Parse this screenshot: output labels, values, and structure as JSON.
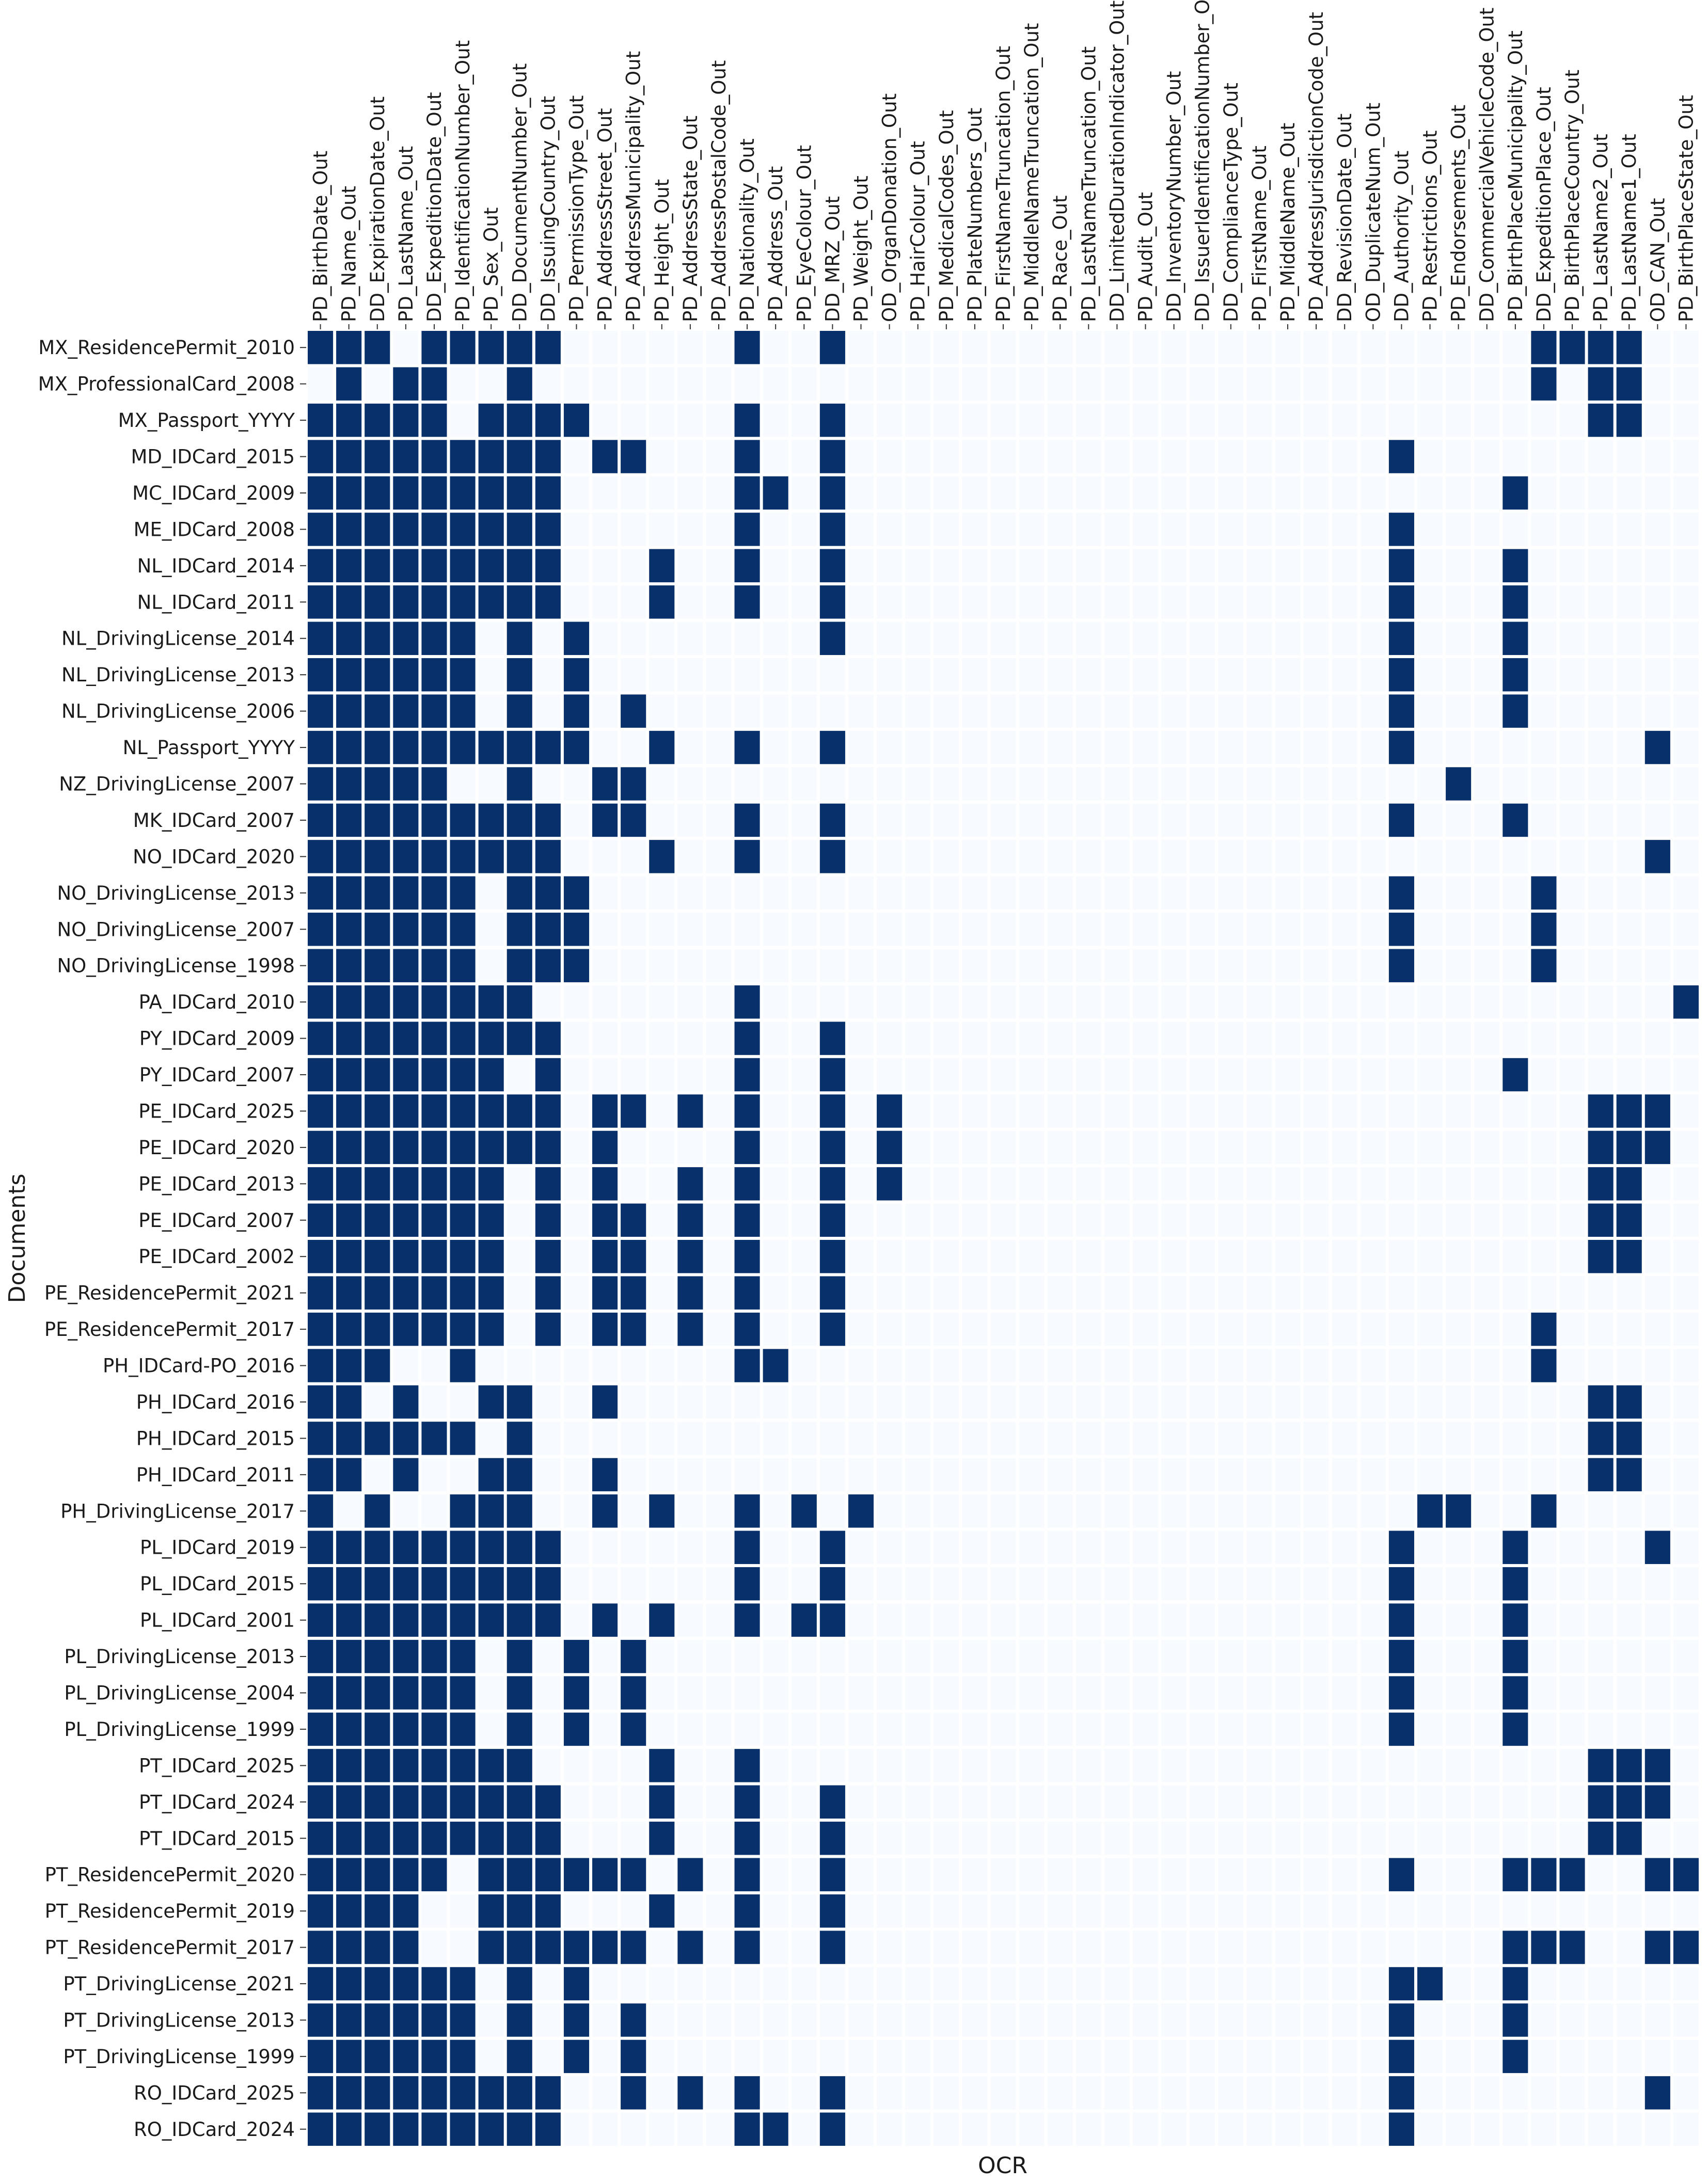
{
  "chart_data": {
    "type": "heatmap",
    "xlabel": "OCR",
    "ylabel": "Documents",
    "colors": {
      "present": "#08306b",
      "absent": "#f7fbff",
      "separator": "#ffffff"
    },
    "columns": [
      "PD_BirthDate_Out",
      "PD_Name_Out",
      "DD_ExpirationDate_Out",
      "PD_LastName_Out",
      "DD_ExpeditionDate_Out",
      "PD_IdentificationNumber_Out",
      "PD_Sex_Out",
      "DD_DocumentNumber_Out",
      "DD_IssuingCountry_Out",
      "PD_PermissionType_Out",
      "PD_AddressStreet_Out",
      "PD_AddressMunicipality_Out",
      "PD_Height_Out",
      "PD_AddressState_Out",
      "PD_AddressPostalCode_Out",
      "PD_Nationality_Out",
      "PD_Address_Out",
      "PD_EyeColour_Out",
      "DD_MRZ_Out",
      "PD_Weight_Out",
      "OD_OrganDonation_Out",
      "PD_HairColour_Out",
      "PD_MedicalCodes_Out",
      "PD_PlateNumbers_Out",
      "PD_FirstNameTruncation_Out",
      "PD_MiddleNameTruncation_Out",
      "PD_Race_Out",
      "PD_LastNameTruncation_Out",
      "DD_LimitedDurationIndicator_Out",
      "PD_Audit_Out",
      "DD_InventoryNumber_Out",
      "DD_IssuerIdentificationNumber_Out",
      "DD_ComplianceType_Out",
      "PD_FirstName_Out",
      "PD_MiddleName_Out",
      "PD_AddressJurisdictionCode_Out",
      "DD_RevisionDate_Out",
      "OD_DuplicateNum_Out",
      "DD_Authority_Out",
      "PD_Restrictions_Out",
      "PD_Endorsements_Out",
      "DD_CommercialVehicleCode_Out",
      "PD_BirthPlaceMunicipality_Out",
      "DD_ExpeditionPlace_Out",
      "PD_BirthPlaceCountry_Out",
      "PD_LastName2_Out",
      "PD_LastName1_Out",
      "OD_CAN_Out",
      "PD_BirthPlaceState_Out"
    ],
    "rows": [
      {
        "name": "MX_ResidencePermit_2010",
        "values": [
          0,
          1,
          2,
          4,
          5,
          6,
          7,
          8,
          15,
          18,
          43,
          44,
          45,
          46
        ]
      },
      {
        "name": "MX_ProfessionalCard_2008",
        "values": [
          1,
          3,
          4,
          7,
          43,
          45,
          46
        ]
      },
      {
        "name": "MX_Passport_YYYY",
        "values": [
          0,
          1,
          2,
          3,
          4,
          6,
          7,
          8,
          9,
          15,
          18,
          45,
          46
        ]
      },
      {
        "name": "MD_IDCard_2015",
        "values": [
          0,
          1,
          2,
          3,
          4,
          5,
          6,
          7,
          8,
          10,
          11,
          15,
          18,
          38
        ]
      },
      {
        "name": "MC_IDCard_2009",
        "values": [
          0,
          1,
          2,
          3,
          4,
          5,
          6,
          7,
          8,
          15,
          16,
          18,
          42
        ]
      },
      {
        "name": "ME_IDCard_2008",
        "values": [
          0,
          1,
          2,
          3,
          4,
          5,
          6,
          7,
          8,
          15,
          18,
          38
        ]
      },
      {
        "name": "NL_IDCard_2014",
        "values": [
          0,
          1,
          2,
          3,
          4,
          5,
          6,
          7,
          8,
          12,
          15,
          18,
          38,
          42
        ]
      },
      {
        "name": "NL_IDCard_2011",
        "values": [
          0,
          1,
          2,
          3,
          4,
          5,
          6,
          7,
          8,
          12,
          15,
          18,
          38,
          42
        ]
      },
      {
        "name": "NL_DrivingLicense_2014",
        "values": [
          0,
          1,
          2,
          3,
          4,
          5,
          7,
          9,
          18,
          38,
          42
        ]
      },
      {
        "name": "NL_DrivingLicense_2013",
        "values": [
          0,
          1,
          2,
          3,
          4,
          5,
          7,
          9,
          38,
          42
        ]
      },
      {
        "name": "NL_DrivingLicense_2006",
        "values": [
          0,
          1,
          2,
          3,
          4,
          5,
          7,
          9,
          11,
          38,
          42
        ]
      },
      {
        "name": "NL_Passport_YYYY",
        "values": [
          0,
          1,
          2,
          3,
          4,
          5,
          6,
          7,
          8,
          9,
          12,
          15,
          18,
          38,
          47
        ]
      },
      {
        "name": "NZ_DrivingLicense_2007",
        "values": [
          0,
          1,
          2,
          3,
          4,
          7,
          10,
          11,
          40
        ]
      },
      {
        "name": "MK_IDCard_2007",
        "values": [
          0,
          1,
          2,
          3,
          4,
          5,
          6,
          7,
          8,
          10,
          11,
          15,
          18,
          38,
          42
        ]
      },
      {
        "name": "NO_IDCard_2020",
        "values": [
          0,
          1,
          2,
          3,
          4,
          5,
          6,
          7,
          8,
          12,
          15,
          18,
          47
        ]
      },
      {
        "name": "NO_DrivingLicense_2013",
        "values": [
          0,
          1,
          2,
          3,
          4,
          5,
          7,
          8,
          9,
          38,
          43
        ]
      },
      {
        "name": "NO_DrivingLicense_2007",
        "values": [
          0,
          1,
          2,
          3,
          4,
          5,
          7,
          8,
          9,
          38,
          43
        ]
      },
      {
        "name": "NO_DrivingLicense_1998",
        "values": [
          0,
          1,
          2,
          3,
          4,
          5,
          7,
          8,
          9,
          38,
          43
        ]
      },
      {
        "name": "PA_IDCard_2010",
        "values": [
          0,
          1,
          2,
          3,
          4,
          5,
          6,
          7,
          15,
          48
        ]
      },
      {
        "name": "PY_IDCard_2009",
        "values": [
          0,
          1,
          2,
          3,
          4,
          5,
          6,
          7,
          8,
          15,
          18
        ]
      },
      {
        "name": "PY_IDCard_2007",
        "values": [
          0,
          1,
          2,
          3,
          4,
          5,
          6,
          8,
          15,
          18,
          42
        ]
      },
      {
        "name": "PE_IDCard_2025",
        "values": [
          0,
          1,
          2,
          3,
          4,
          5,
          6,
          7,
          8,
          10,
          11,
          13,
          15,
          18,
          20,
          45,
          46,
          47
        ]
      },
      {
        "name": "PE_IDCard_2020",
        "values": [
          0,
          1,
          2,
          3,
          4,
          5,
          6,
          7,
          8,
          10,
          15,
          18,
          20,
          45,
          46,
          47
        ]
      },
      {
        "name": "PE_IDCard_2013",
        "values": [
          0,
          1,
          2,
          3,
          4,
          5,
          6,
          8,
          10,
          13,
          15,
          18,
          20,
          45,
          46
        ]
      },
      {
        "name": "PE_IDCard_2007",
        "values": [
          0,
          1,
          2,
          3,
          4,
          5,
          6,
          8,
          10,
          11,
          13,
          15,
          18,
          45,
          46
        ]
      },
      {
        "name": "PE_IDCard_2002",
        "values": [
          0,
          1,
          2,
          3,
          4,
          5,
          6,
          8,
          10,
          11,
          13,
          15,
          18,
          45,
          46
        ]
      },
      {
        "name": "PE_ResidencePermit_2021",
        "values": [
          0,
          1,
          2,
          3,
          4,
          5,
          6,
          8,
          10,
          11,
          13,
          15,
          18
        ]
      },
      {
        "name": "PE_ResidencePermit_2017",
        "values": [
          0,
          1,
          2,
          3,
          4,
          5,
          6,
          8,
          10,
          11,
          13,
          15,
          18,
          43
        ]
      },
      {
        "name": "PH_IDCard-PO_2016",
        "values": [
          0,
          1,
          2,
          5,
          15,
          16,
          43
        ]
      },
      {
        "name": "PH_IDCard_2016",
        "values": [
          0,
          1,
          3,
          6,
          7,
          10,
          45,
          46
        ]
      },
      {
        "name": "PH_IDCard_2015",
        "values": [
          0,
          1,
          2,
          3,
          4,
          5,
          7,
          45,
          46
        ]
      },
      {
        "name": "PH_IDCard_2011",
        "values": [
          0,
          1,
          3,
          6,
          7,
          10,
          45,
          46
        ]
      },
      {
        "name": "PH_DrivingLicense_2017",
        "values": [
          0,
          2,
          5,
          6,
          7,
          10,
          12,
          15,
          17,
          19,
          39,
          40,
          43
        ]
      },
      {
        "name": "PL_IDCard_2019",
        "values": [
          0,
          1,
          2,
          3,
          4,
          5,
          6,
          7,
          8,
          15,
          18,
          38,
          42,
          47
        ]
      },
      {
        "name": "PL_IDCard_2015",
        "values": [
          0,
          1,
          2,
          3,
          4,
          5,
          6,
          7,
          8,
          15,
          18,
          38,
          42
        ]
      },
      {
        "name": "PL_IDCard_2001",
        "values": [
          0,
          1,
          2,
          3,
          4,
          5,
          6,
          7,
          8,
          10,
          12,
          15,
          17,
          18,
          38,
          42
        ]
      },
      {
        "name": "PL_DrivingLicense_2013",
        "values": [
          0,
          1,
          2,
          3,
          4,
          5,
          7,
          9,
          11,
          38,
          42
        ]
      },
      {
        "name": "PL_DrivingLicense_2004",
        "values": [
          0,
          1,
          2,
          3,
          4,
          5,
          7,
          9,
          11,
          38,
          42
        ]
      },
      {
        "name": "PL_DrivingLicense_1999",
        "values": [
          0,
          1,
          2,
          3,
          4,
          5,
          7,
          9,
          11,
          38,
          42
        ]
      },
      {
        "name": "PT_IDCard_2025",
        "values": [
          0,
          1,
          2,
          3,
          4,
          5,
          6,
          7,
          12,
          15,
          45,
          46,
          47
        ]
      },
      {
        "name": "PT_IDCard_2024",
        "values": [
          0,
          1,
          2,
          3,
          4,
          5,
          6,
          7,
          8,
          12,
          15,
          18,
          45,
          46,
          47
        ]
      },
      {
        "name": "PT_IDCard_2015",
        "values": [
          0,
          1,
          2,
          3,
          4,
          5,
          6,
          7,
          8,
          12,
          15,
          18,
          45,
          46
        ]
      },
      {
        "name": "PT_ResidencePermit_2020",
        "values": [
          0,
          1,
          2,
          3,
          4,
          6,
          7,
          8,
          9,
          10,
          11,
          13,
          15,
          18,
          38,
          42,
          43,
          44,
          47,
          48
        ]
      },
      {
        "name": "PT_ResidencePermit_2019",
        "values": [
          0,
          1,
          2,
          3,
          6,
          7,
          8,
          12,
          15,
          18
        ]
      },
      {
        "name": "PT_ResidencePermit_2017",
        "values": [
          0,
          1,
          2,
          3,
          6,
          7,
          8,
          9,
          10,
          11,
          13,
          15,
          18,
          42,
          43,
          44,
          47,
          48
        ]
      },
      {
        "name": "PT_DrivingLicense_2021",
        "values": [
          0,
          1,
          2,
          3,
          4,
          5,
          7,
          9,
          38,
          39,
          42
        ]
      },
      {
        "name": "PT_DrivingLicense_2013",
        "values": [
          0,
          1,
          2,
          3,
          4,
          5,
          7,
          9,
          11,
          38,
          42
        ]
      },
      {
        "name": "PT_DrivingLicense_1999",
        "values": [
          0,
          1,
          2,
          3,
          4,
          5,
          7,
          9,
          11,
          38,
          42
        ]
      },
      {
        "name": "RO_IDCard_2025",
        "values": [
          0,
          1,
          2,
          3,
          4,
          5,
          6,
          7,
          8,
          11,
          13,
          15,
          18,
          38,
          47
        ]
      },
      {
        "name": "RO_IDCard_2024",
        "values": [
          0,
          1,
          2,
          3,
          4,
          5,
          6,
          7,
          8,
          15,
          16,
          18,
          38
        ]
      }
    ]
  }
}
